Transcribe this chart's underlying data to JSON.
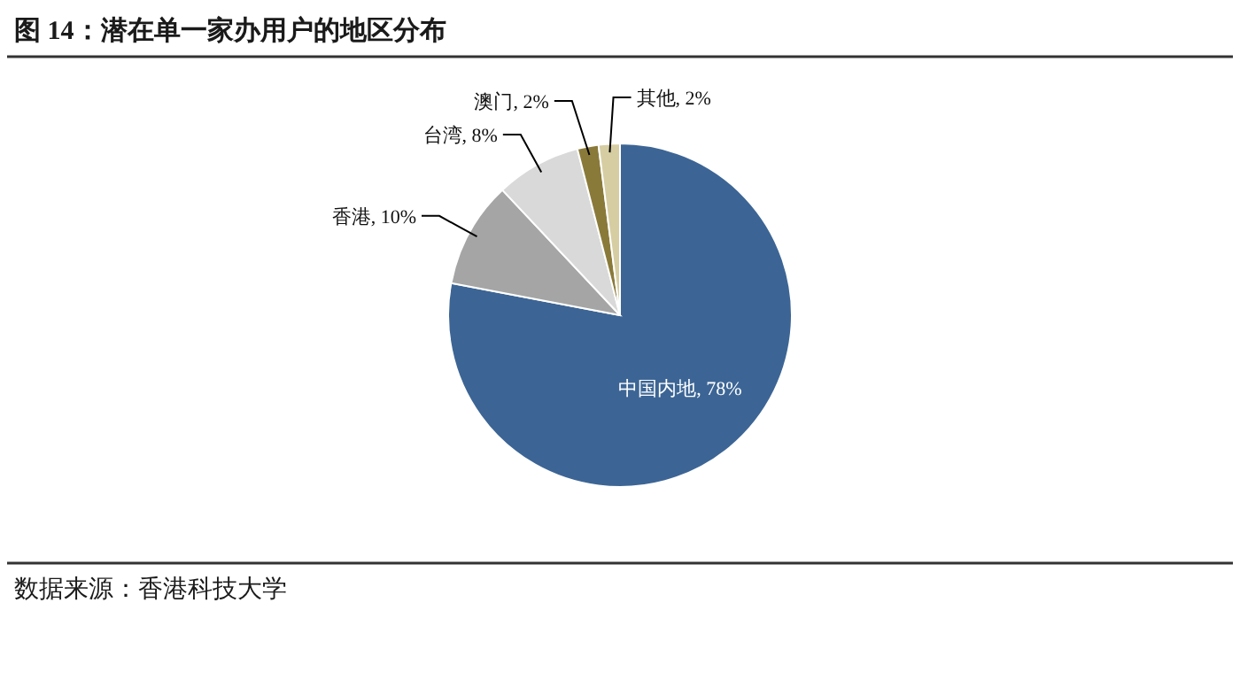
{
  "chart_data": {
    "type": "pie",
    "title": "图 14：潜在单一家办用户的地区分布",
    "categories": [
      "中国内地",
      "香港",
      "台湾",
      "澳门",
      "其他"
    ],
    "values": [
      78,
      10,
      8,
      2,
      2
    ],
    "value_labels": [
      "78%",
      "10%",
      "8%",
      "2%",
      "2%"
    ],
    "colors": [
      "#3c6595",
      "#a5a5a5",
      "#d9d9d9",
      "#8a7a3a",
      "#d6cda2"
    ],
    "annotations": [
      "数据来源：香港科技大学"
    ]
  }
}
